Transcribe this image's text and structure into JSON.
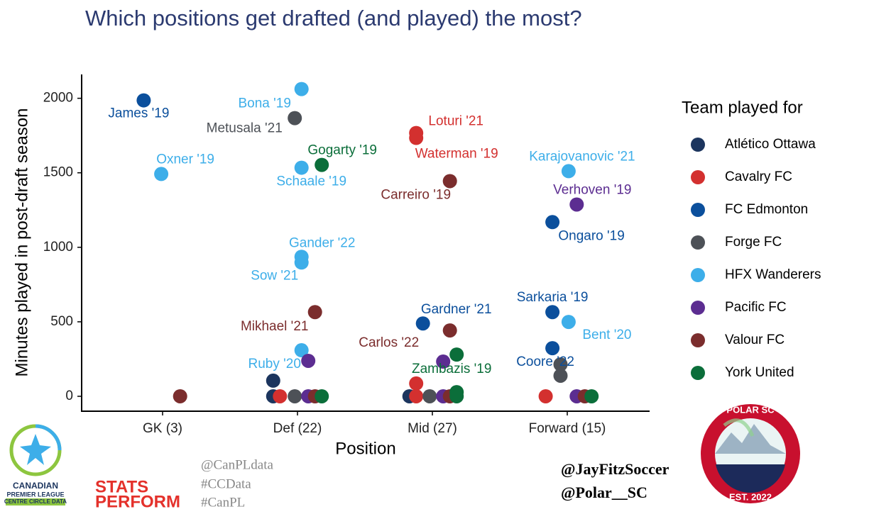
{
  "chart_data": {
    "type": "scatter",
    "title": "Which positions get drafted (and played) the most?",
    "x_label": "Position",
    "y_label": "Minutes played in post-draft season",
    "legend_title": "Team played for",
    "legend": "right",
    "grid": false,
    "xlim": [
      0.4,
      4.6
    ],
    "xticks": [
      {
        "value": 1,
        "label": "GK (3)"
      },
      {
        "value": 2,
        "label": "Def (22)"
      },
      {
        "value": 3,
        "label": "Mid (27)"
      },
      {
        "value": 4,
        "label": "Forward (15)"
      }
    ],
    "ylim": [
      -100,
      2160
    ],
    "yticks": [
      0,
      500,
      1000,
      1500,
      2000
    ],
    "series": [
      {
        "name": "Atlético Ottawa",
        "color": "#1c355e",
        "x": [
          1.82,
          1.82,
          2.83
        ],
        "values": [
          0,
          105,
          0
        ],
        "labels": [
          null,
          null,
          null
        ]
      },
      {
        "name": "Cavalry FC",
        "color": "#d3302f",
        "x": [
          2.88,
          2.88,
          1.87,
          2.88,
          2.88,
          3.84
        ],
        "values": [
          1767,
          1734,
          0,
          86,
          0,
          0
        ],
        "labels": [
          "Loturi '21",
          "Waterman '19",
          null,
          null,
          null,
          null
        ]
      },
      {
        "name": "FC Edmonton",
        "color": "#0b4f9c",
        "x": [
          0.86,
          3.89,
          2.93,
          3.89,
          3.89
        ],
        "values": [
          1986,
          1169,
          489,
          565,
          323
        ],
        "labels": [
          "James '19",
          "Ongaro '19",
          "Gardner '21",
          "Sarkaria '19",
          "Coore '22"
        ]
      },
      {
        "name": "Forge FC",
        "color": "#4d5157",
        "x": [
          1.98,
          1.98,
          2.98,
          3.95,
          3.95
        ],
        "values": [
          1867,
          0,
          0,
          214,
          138
        ],
        "labels": [
          "Metusala '21",
          null,
          null,
          null,
          null
        ]
      },
      {
        "name": "HFX Wanderers",
        "color": "#3daee9",
        "x": [
          2.03,
          0.99,
          2.03,
          2.03,
          2.03,
          2.03,
          4.01,
          4.01
        ],
        "values": [
          2062,
          1492,
          1534,
          936,
          898,
          309,
          1511,
          499
        ],
        "labels": [
          "Bona '19",
          "Oxner '19",
          "Schaale '19",
          "Gander '22",
          "Sow '21",
          "Ruby '20",
          "Karajovanovic '21",
          "Bent '20"
        ]
      },
      {
        "name": "Pacific FC",
        "color": "#5c2d91",
        "x": [
          4.07,
          2.08,
          2.08,
          3.08,
          3.08,
          4.07
        ],
        "values": [
          1287,
          238,
          0,
          233,
          0,
          0
        ],
        "labels": [
          "Verhoven '19",
          null,
          null,
          null,
          null,
          null
        ]
      },
      {
        "name": "Valour FC",
        "color": "#7b2d2d",
        "x": [
          1.13,
          2.13,
          3.13,
          3.13,
          2.13,
          3.13,
          4.13
        ],
        "values": [
          0,
          565,
          1444,
          442,
          0,
          0,
          0
        ],
        "labels": [
          null,
          "Mikhael '21",
          "Carreiro '19",
          "Carlos '22",
          null,
          null,
          null
        ]
      },
      {
        "name": "York United",
        "color": "#0b6e3a",
        "x": [
          2.18,
          2.18,
          3.18,
          3.18,
          3.18,
          4.18
        ],
        "values": [
          1553,
          0,
          280,
          28,
          0,
          0
        ],
        "labels": [
          "Gogarty '19",
          null,
          "Zambazis '19",
          null,
          null,
          null
        ]
      }
    ]
  },
  "footer": {
    "cpl_logo": [
      "CANADIAN",
      "PREMIER LEAGUE",
      "CENTRE CIRCLE DATA"
    ],
    "stats_perform": [
      "STATS",
      "PERFORM"
    ],
    "hashtags": [
      "@CanPLdata",
      "#CCData",
      "#CanPL"
    ],
    "handles": [
      "@JayFitzSoccer",
      "@Polar__SC"
    ],
    "badge": [
      "POLAR SC",
      "EST. 2022"
    ]
  }
}
